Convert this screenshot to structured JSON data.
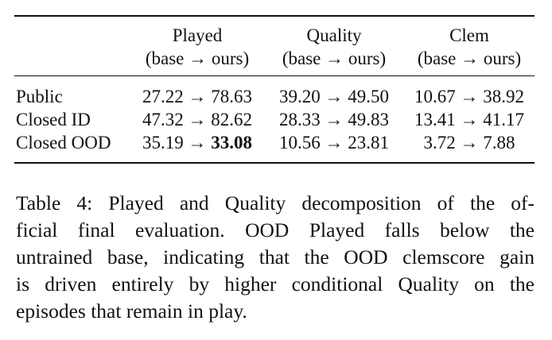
{
  "table": {
    "arrow": "→",
    "columns": [
      {
        "name": "Played",
        "subheader": "(base → ours)"
      },
      {
        "name": "Quality",
        "subheader": "(base → ours)"
      },
      {
        "name": "Clem",
        "subheader": "(base → ours)"
      }
    ],
    "rows": [
      {
        "label": "Public",
        "cells": [
          {
            "base": "27.22",
            "ours": "78.63"
          },
          {
            "base": "39.20",
            "ours": "49.50"
          },
          {
            "base": "10.67",
            "ours": "38.92"
          }
        ]
      },
      {
        "label": "Closed ID",
        "cells": [
          {
            "base": "47.32",
            "ours": "82.62"
          },
          {
            "base": "28.33",
            "ours": "49.83"
          },
          {
            "base": "13.41",
            "ours": "41.17"
          }
        ]
      },
      {
        "label": "Closed OOD",
        "cells": [
          {
            "base": "35.19",
            "ours": "33.08"
          },
          {
            "base": "10.56",
            "ours": "23.81"
          },
          {
            "base": "3.72",
            "ours": "7.88"
          }
        ]
      }
    ]
  },
  "caption": {
    "lines": [
      "Table 4: Played and Quality decomposition of the of-",
      "ficial final evaluation. OOD Played falls below the",
      "untrained base, indicating that the OOD clemscore gain",
      "is driven entirely by higher conditional Quality on the",
      "episodes that remain in play."
    ]
  }
}
